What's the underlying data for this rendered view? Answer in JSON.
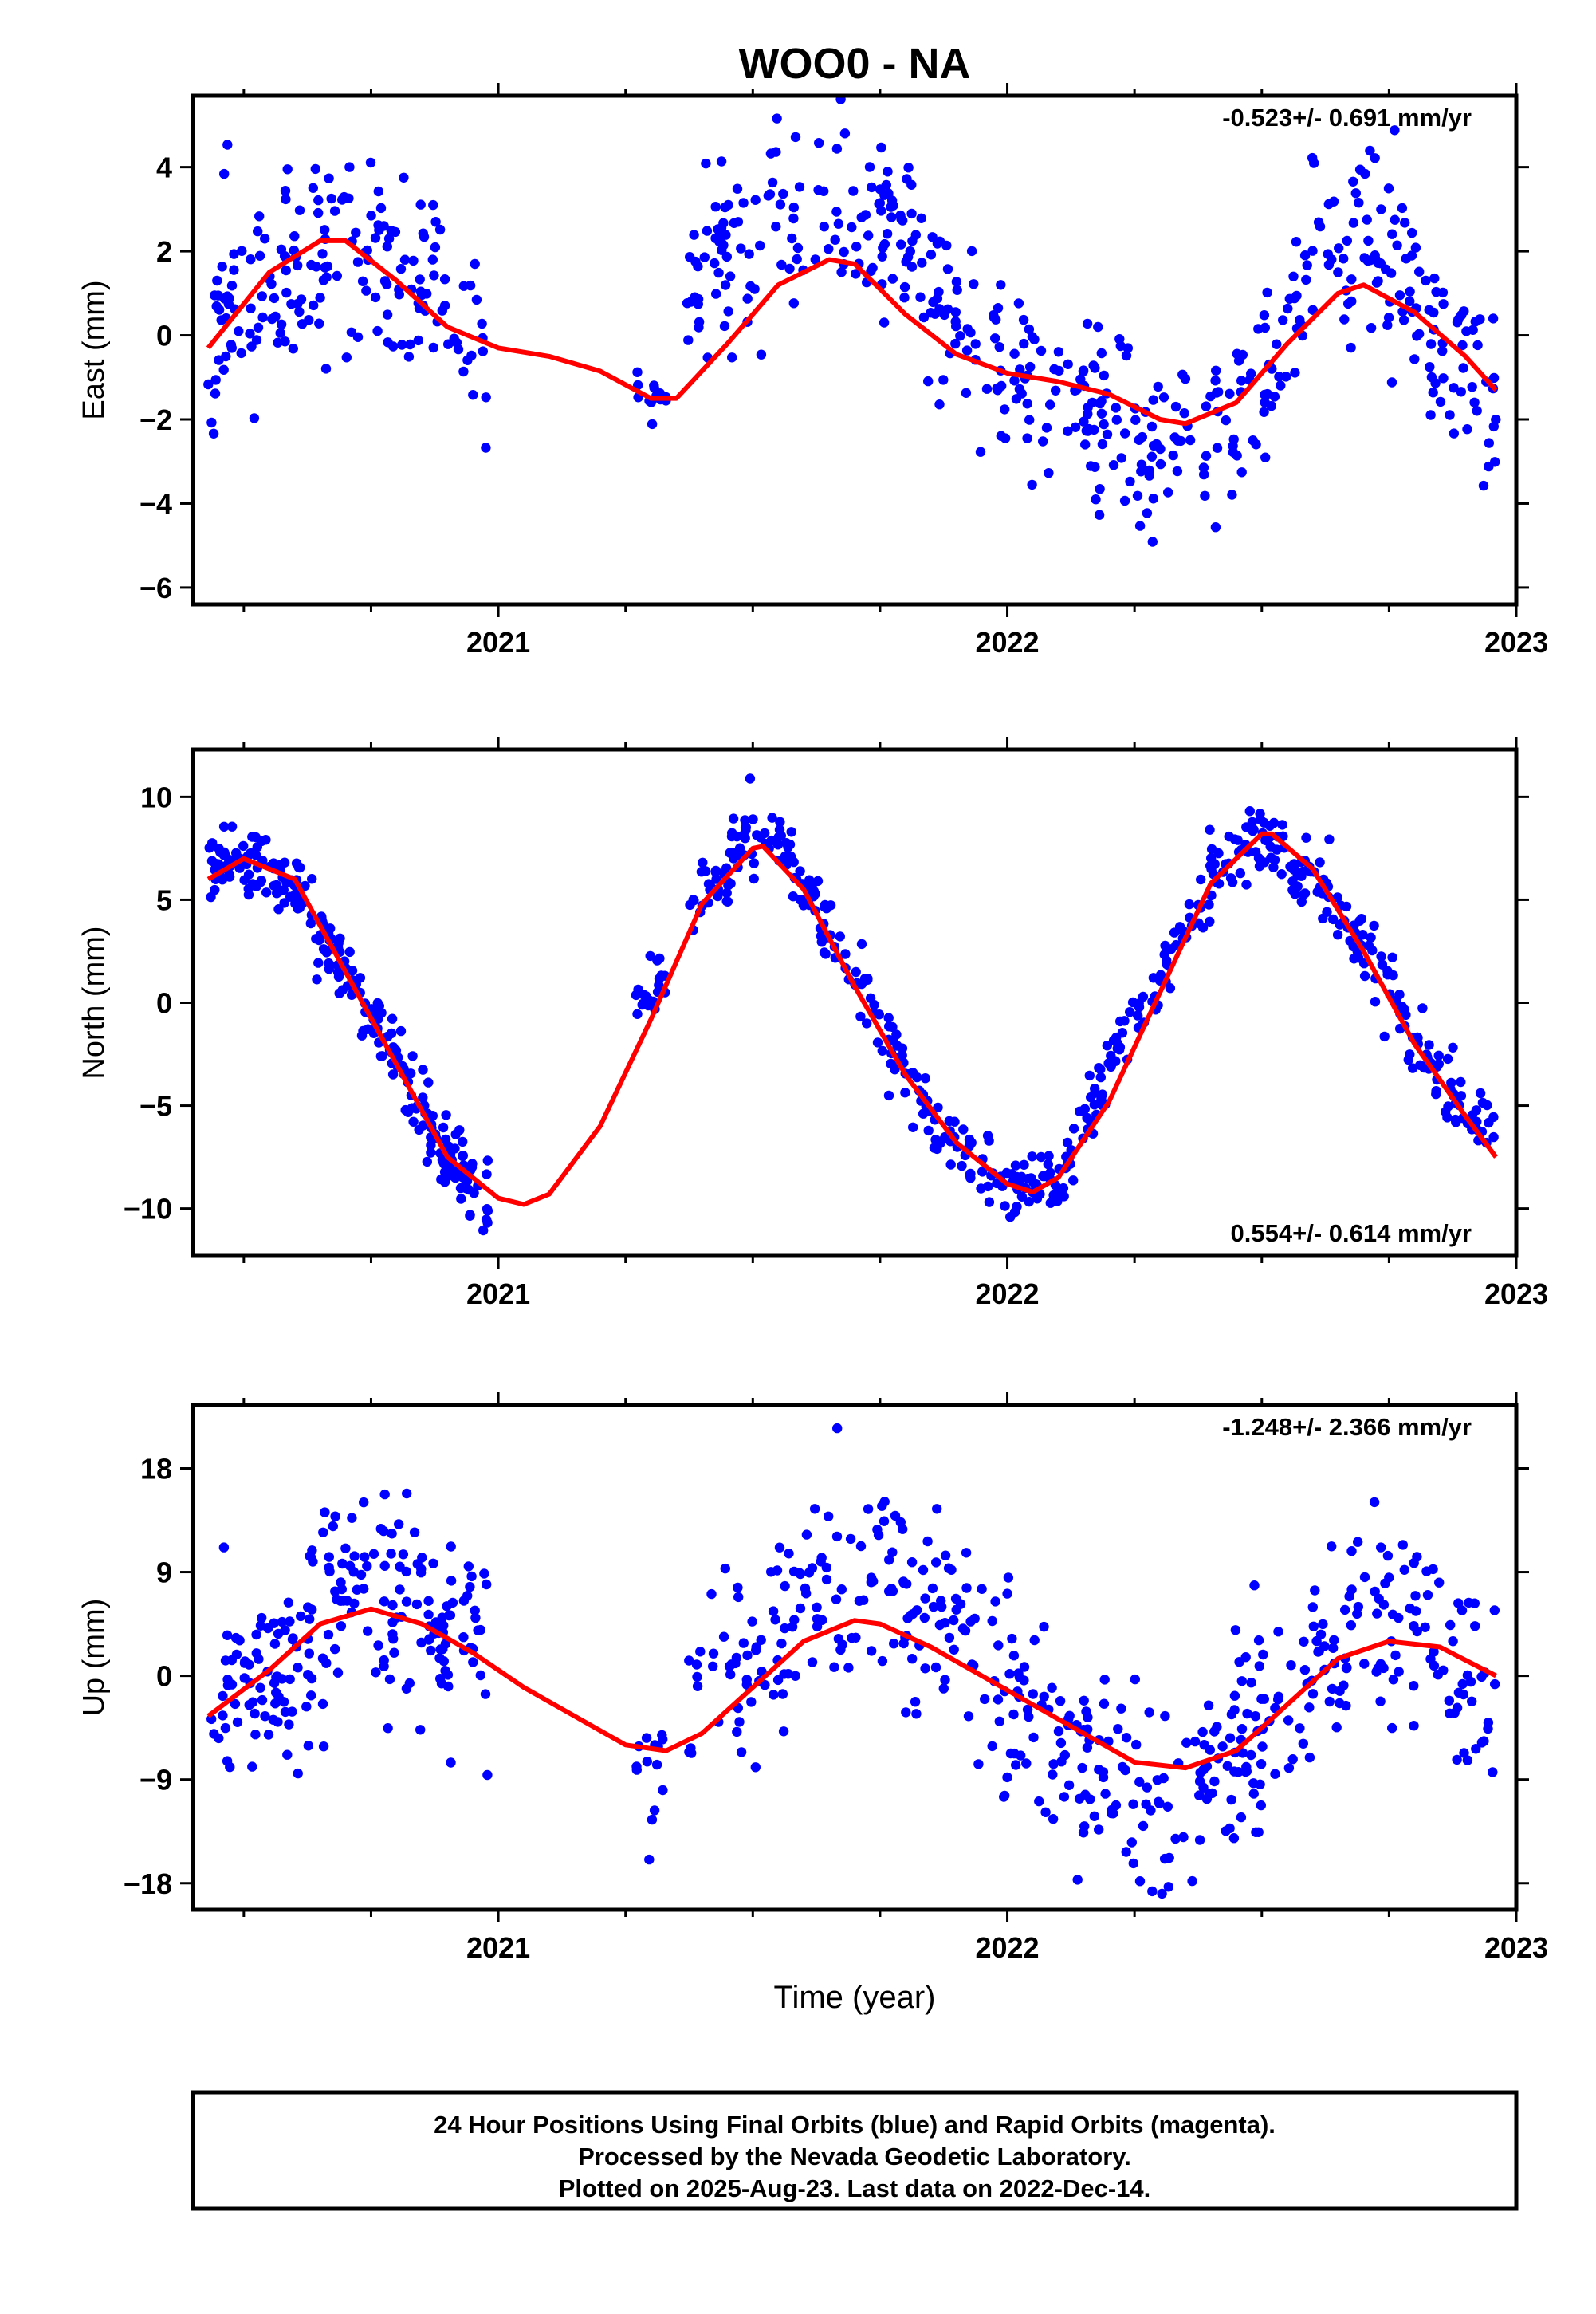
{
  "title": "WOO0 - NA",
  "xlabel": "Time (year)",
  "footer": {
    "lines": [
      "24 Hour Positions Using Final Orbits (blue) and Rapid Orbits (magenta).",
      "Processed by the Nevada Geodetic Laboratory.",
      "Plotted on 2025-Aug-23. Last data on 2022-Dec-14."
    ]
  },
  "colors": {
    "points": "#0000ff",
    "fit": "#ff0000",
    "axes": "#000000"
  },
  "chart_data": [
    {
      "type": "scatter",
      "ylabel": "East (mm)",
      "rate": "-0.523+/- 0.691 mm/yr",
      "rate_position": "top-right",
      "xlim": [
        2020.4,
        2023.0
      ],
      "ylim": [
        -6.4,
        5.7
      ],
      "xticks": [
        2021,
        2022,
        2023
      ],
      "xtick_labels": [
        "2021",
        "2022",
        "2023"
      ],
      "yticks": [
        -6,
        -4,
        -2,
        0,
        2,
        4
      ],
      "ytick_labels": [
        "−6",
        "−4",
        "−2",
        "0",
        "2",
        "4"
      ],
      "fit": {
        "x": [
          2020.43,
          2020.55,
          2020.65,
          2020.7,
          2020.8,
          2020.9,
          2021.0,
          2021.1,
          2021.2,
          2021.3,
          2021.35,
          2021.45,
          2021.55,
          2021.65,
          2021.7,
          2021.8,
          2021.9,
          2022.0,
          2022.1,
          2022.2,
          2022.3,
          2022.35,
          2022.45,
          2022.55,
          2022.65,
          2022.7,
          2022.8,
          2022.9,
          2022.96
        ],
        "y": [
          -0.3,
          1.5,
          2.25,
          2.25,
          1.3,
          0.2,
          -0.3,
          -0.5,
          -0.85,
          -1.5,
          -1.5,
          -0.2,
          1.2,
          1.8,
          1.7,
          0.5,
          -0.45,
          -0.9,
          -1.1,
          -1.4,
          -2.0,
          -2.1,
          -1.6,
          -0.2,
          1.0,
          1.2,
          0.55,
          -0.5,
          -1.3
        ]
      },
      "segments": [
        {
          "start": 2020.43,
          "end": 2020.98,
          "trend": [
            [
              2020.43,
              -0.3
            ],
            [
              2020.55,
              1.5
            ],
            [
              2020.65,
              2.25
            ],
            [
              2020.7,
              2.25
            ],
            [
              2020.8,
              1.3
            ],
            [
              2020.9,
              0.2
            ],
            [
              2020.98,
              -0.3
            ]
          ],
          "scatter": 1.2,
          "count": 180
        },
        {
          "start": 2021.27,
          "end": 2021.33,
          "trend": [
            [
              2021.27,
              -1.3
            ],
            [
              2021.33,
              -1.5
            ]
          ],
          "scatter": 0.5,
          "count": 15
        },
        {
          "start": 2021.37,
          "end": 2022.96,
          "trend": [
            [
              2021.37,
              1.5
            ],
            [
              2021.5,
              2.2
            ],
            [
              2021.65,
              3.2
            ],
            [
              2021.8,
              2.3
            ],
            [
              2021.9,
              0.5
            ],
            [
              2022.0,
              -0.8
            ],
            [
              2022.1,
              -1.4
            ],
            [
              2022.2,
              -2.0
            ],
            [
              2022.3,
              -2.7
            ],
            [
              2022.4,
              -2.8
            ],
            [
              2022.5,
              -1.0
            ],
            [
              2022.6,
              1.5
            ],
            [
              2022.7,
              2.6
            ],
            [
              2022.8,
              0.8
            ],
            [
              2022.9,
              -0.7
            ],
            [
              2022.96,
              -1.2
            ]
          ],
          "scatter": 1.2,
          "count": 480
        }
      ],
      "seed": 11
    },
    {
      "type": "scatter",
      "ylabel": "North (mm)",
      "rate": "0.554+/- 0.614 mm/yr",
      "rate_position": "bottom-right",
      "xlim": [
        2020.4,
        2023.0
      ],
      "ylim": [
        -12.3,
        12.3
      ],
      "xticks": [
        2021,
        2022,
        2023
      ],
      "xtick_labels": [
        "2021",
        "2022",
        "2023"
      ],
      "yticks": [
        -10,
        -5,
        0,
        5,
        10
      ],
      "ytick_labels": [
        "−10",
        "−5",
        "0",
        "5",
        "10"
      ],
      "fit": {
        "x": [
          2020.43,
          2020.5,
          2020.6,
          2020.7,
          2020.8,
          2020.9,
          2021.0,
          2021.05,
          2021.1,
          2021.2,
          2021.3,
          2021.4,
          2021.5,
          2021.52,
          2021.6,
          2021.7,
          2021.8,
          2021.9,
          2022.0,
          2022.05,
          2022.1,
          2022.2,
          2022.3,
          2022.4,
          2022.5,
          2022.52,
          2022.6,
          2022.7,
          2022.8,
          2022.9,
          2022.96
        ],
        "y": [
          6.0,
          7.0,
          6.0,
          1.5,
          -3.0,
          -7.5,
          -9.5,
          -9.8,
          -9.3,
          -6.0,
          -0.8,
          4.8,
          7.5,
          7.6,
          5.5,
          0.8,
          -3.5,
          -6.8,
          -8.8,
          -9.2,
          -8.5,
          -4.8,
          0.5,
          5.8,
          8.2,
          8.2,
          6.5,
          2.5,
          -2.0,
          -5.5,
          -7.5
        ]
      },
      "segments": [
        {
          "start": 2020.43,
          "end": 2020.98,
          "trend": [
            [
              2020.43,
              6.8
            ],
            [
              2020.5,
              7.0
            ],
            [
              2020.6,
              6.0
            ],
            [
              2020.7,
              1.5
            ],
            [
              2020.8,
              -3.0
            ],
            [
              2020.9,
              -7.5
            ],
            [
              2020.98,
              -9.5
            ]
          ],
          "scatter": 0.8,
          "count": 260
        },
        {
          "start": 2021.27,
          "end": 2021.33,
          "trend": [
            [
              2021.27,
              -0.5
            ],
            [
              2021.33,
              1.0
            ]
          ],
          "scatter": 1.0,
          "count": 20
        },
        {
          "start": 2021.37,
          "end": 2022.96,
          "trend": [
            [
              2021.37,
              4.0
            ],
            [
              2021.5,
              8.5
            ],
            [
              2021.55,
              8.6
            ],
            [
              2021.6,
              5.5
            ],
            [
              2021.7,
              1.5
            ],
            [
              2021.8,
              -3.5
            ],
            [
              2021.9,
              -7.5
            ],
            [
              2022.0,
              -9.2
            ],
            [
              2022.1,
              -8.8
            ],
            [
              2022.2,
              -3.0
            ],
            [
              2022.3,
              1.0
            ],
            [
              2022.4,
              6.5
            ],
            [
              2022.5,
              8.5
            ],
            [
              2022.6,
              6.0
            ],
            [
              2022.7,
              2.5
            ],
            [
              2022.8,
              -1.5
            ],
            [
              2022.9,
              -5.5
            ],
            [
              2022.96,
              -6.5
            ]
          ],
          "scatter": 0.9,
          "count": 520
        }
      ],
      "seed": 23
    },
    {
      "type": "scatter",
      "ylabel": "Up (mm)",
      "rate": "-1.248+/- 2.366 mm/yr",
      "rate_position": "top-right",
      "xlim": [
        2020.4,
        2023.0
      ],
      "ylim": [
        -20.3,
        23.5
      ],
      "xticks": [
        2021,
        2022,
        2023
      ],
      "xtick_labels": [
        "2021",
        "2022",
        "2023"
      ],
      "yticks": [
        -18,
        -9,
        0,
        9,
        18
      ],
      "ytick_labels": [
        "−18",
        "−9",
        "0",
        "9",
        "18"
      ],
      "fit": {
        "x": [
          2020.43,
          2020.55,
          2020.65,
          2020.75,
          2020.85,
          2020.95,
          2021.05,
          2021.15,
          2021.25,
          2021.33,
          2021.4,
          2021.5,
          2021.6,
          2021.7,
          2021.75,
          2021.85,
          2021.95,
          2022.05,
          2022.15,
          2022.25,
          2022.35,
          2022.45,
          2022.55,
          2022.65,
          2022.75,
          2022.85,
          2022.96
        ],
        "y": [
          -3.5,
          0.5,
          4.5,
          5.8,
          4.5,
          2.0,
          -1.0,
          -3.5,
          -6.0,
          -6.5,
          -5.0,
          -1.0,
          3.0,
          4.8,
          4.5,
          2.5,
          0.0,
          -2.5,
          -5.0,
          -7.5,
          -8.0,
          -6.5,
          -2.5,
          1.5,
          3.0,
          2.5,
          0.0
        ]
      },
      "segments": [
        {
          "start": 2020.43,
          "end": 2020.98,
          "trend": [
            [
              2020.43,
              -3.5
            ],
            [
              2020.55,
              0.5
            ],
            [
              2020.65,
              4.5
            ],
            [
              2020.75,
              5.8
            ],
            [
              2020.85,
              4.5
            ],
            [
              2020.98,
              2.0
            ]
          ],
          "scatter": 4.5,
          "count": 210
        },
        {
          "start": 2021.27,
          "end": 2021.33,
          "trend": [
            [
              2021.27,
              -8.0
            ],
            [
              2021.33,
              -7.0
            ]
          ],
          "scatter": 4.0,
          "count": 14
        },
        {
          "start": 2021.37,
          "end": 2022.96,
          "trend": [
            [
              2021.37,
              -4.0
            ],
            [
              2021.5,
              1.0
            ],
            [
              2021.6,
              6.5
            ],
            [
              2021.7,
              8.5
            ],
            [
              2021.8,
              6.5
            ],
            [
              2021.9,
              3.0
            ],
            [
              2022.0,
              -1.0
            ],
            [
              2022.1,
              -5.0
            ],
            [
              2022.2,
              -8.0
            ],
            [
              2022.3,
              -10.5
            ],
            [
              2022.4,
              -8.5
            ],
            [
              2022.5,
              -4.0
            ],
            [
              2022.6,
              0.5
            ],
            [
              2022.7,
              3.5
            ],
            [
              2022.8,
              5.0
            ],
            [
              2022.9,
              -1.0
            ],
            [
              2022.96,
              -2.0
            ]
          ],
          "scatter": 4.5,
          "count": 470
        }
      ],
      "seed": 37
    }
  ]
}
